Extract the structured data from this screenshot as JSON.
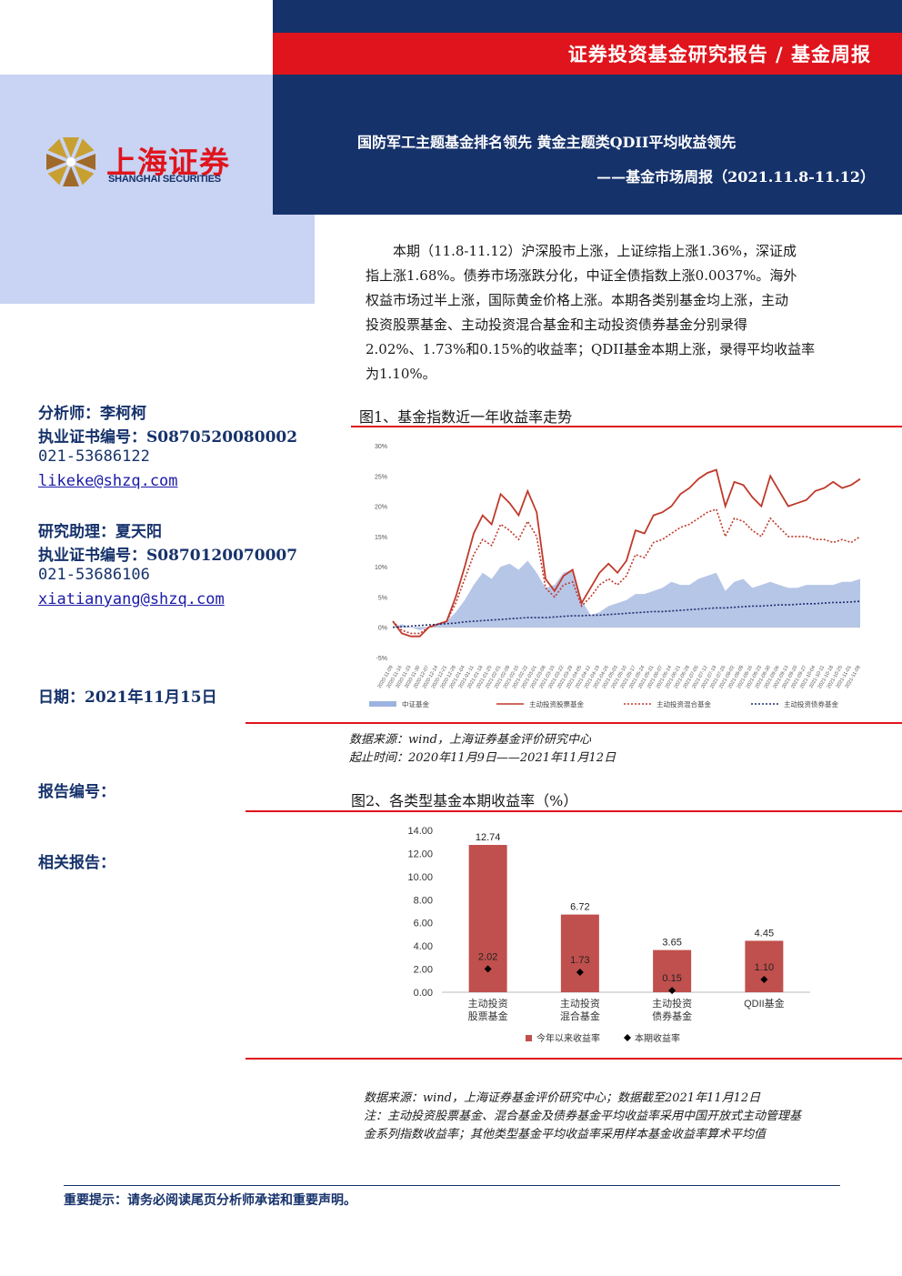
{
  "header": {
    "report_type": "证券投资基金研究报告 / 基金周报",
    "title": "国防军工主题基金排名领先 黄金主题类QDII平均收益领先",
    "subtitle": "——基金市场周报（2021.11.8-11.12）"
  },
  "brand": {
    "name_cn": "上海证券",
    "name_en": "SHANGHAI SECURITIES",
    "colors": {
      "navy": "#16326b",
      "red": "#e0141c",
      "lavender": "#c9d3f3"
    }
  },
  "summary": {
    "lines": [
      "本期（11.8-11.12）沪深股市上涨，上证综指上涨1.36%，深证成",
      "指上涨1.68%。债券市场涨跌分化，中证全债指数上涨0.0037%。海外",
      "权益市场过半上涨，国际黄金价格上涨。本期各类别基金均上涨，主动",
      "投资股票基金、主动投资混合基金和主动投资债券基金分别录得",
      "2.02%、1.73%和0.15%的收益率；QDII基金本期上涨，录得平均收益率",
      "为1.10%。"
    ]
  },
  "sidebar": {
    "analyst": "分析师：李柯柯",
    "analyst_cert": "执业证书编号：S0870520080002",
    "analyst_phone": "021-53686122",
    "analyst_email": "likeke@shzq.com",
    "assistant": "研究助理：夏天阳",
    "assistant_cert": "执业证书编号：S0870120070007",
    "assistant_phone": "021-53686106",
    "assistant_email": "xiatianyang@shzq.com",
    "date": "日期：2021年11月15日",
    "report_no": "报告编号：",
    "related": "相关报告："
  },
  "figure1": {
    "title": "图1、基金指数近一年收益率走势",
    "source": "数据来源：wind，上海证券基金评价研究中心",
    "period": "起止时间：2020年11月9日——2021年11月12日"
  },
  "figure2": {
    "title": "图2、各类型基金本期收益率（%）",
    "source": "数据来源：wind，上海证券基金评价研究中心；数据截至2021年11月12日",
    "note1": "注：主动投资股票基金、混合基金及债券基金平均收益率采用中国开放式主动管理基",
    "note2": "金系列指数收益率；其他类型基金平均收益率采用样本基金收益率算术平均值"
  },
  "footer": {
    "notice": "重要提示：请务必阅读尾页分析师承诺和重要声明。"
  },
  "chart_data": [
    {
      "type": "line",
      "title": "",
      "y_unit": "%",
      "ylim": [
        -5,
        30
      ],
      "yticks": [
        "-5%",
        "0%",
        "5%",
        "10%",
        "15%",
        "20%",
        "25%",
        "30%"
      ],
      "xticks": [
        "2020-11-09",
        "2020-11-16",
        "2020-11-23",
        "2020-11-30",
        "2020-12-07",
        "2020-12-14",
        "2020-12-21",
        "2020-12-28",
        "2021-01-04",
        "2021-01-11",
        "2021-01-18",
        "2021-01-25",
        "2021-02-01",
        "2021-02-08",
        "2021-02-15",
        "2021-02-22",
        "2021-03-01",
        "2021-03-08",
        "2021-03-15",
        "2021-03-22",
        "2021-03-29",
        "2021-04-05",
        "2021-04-12",
        "2021-04-19",
        "2021-04-26",
        "2021-05-03",
        "2021-05-10",
        "2021-05-17",
        "2021-05-24",
        "2021-05-31",
        "2021-06-07",
        "2021-06-14",
        "2021-06-21",
        "2021-06-28",
        "2021-07-05",
        "2021-07-12",
        "2021-07-19",
        "2021-07-26",
        "2021-08-02",
        "2021-08-09",
        "2021-08-16",
        "2021-08-23",
        "2021-08-30",
        "2021-09-06",
        "2021-09-13",
        "2021-09-20",
        "2021-09-27",
        "2021-10-04",
        "2021-10-11",
        "2021-10-18",
        "2021-10-25",
        "2021-11-01",
        "2021-11-08"
      ],
      "grid": false,
      "legend": "bottom",
      "series": [
        {
          "name": "中证基金",
          "style": "area",
          "color": "#9db3df",
          "values": [
            0,
            0.5,
            0,
            -0.5,
            0,
            0.5,
            1,
            2.5,
            4.5,
            7,
            9,
            8,
            10,
            10.5,
            9.5,
            11,
            9,
            6.5,
            7,
            9,
            9.5,
            4.5,
            2,
            2.5,
            3.5,
            4,
            4.5,
            5.5,
            5.5,
            6,
            6.5,
            7.5,
            7,
            7,
            8,
            8.5,
            9,
            6,
            7.5,
            8,
            6.5,
            7,
            7.5,
            7,
            6.5,
            6.5,
            7,
            7,
            7,
            7,
            7.5,
            7.5,
            8
          ]
        },
        {
          "name": "主动投资股票基金",
          "style": "solid",
          "color": "#c0392b",
          "values": [
            1,
            -1,
            -1.5,
            -1.5,
            0,
            0.5,
            1,
            5,
            10,
            15.5,
            18.5,
            17,
            22,
            20.5,
            18.5,
            22.5,
            19,
            8,
            6,
            8.5,
            9.5,
            4,
            6.5,
            9,
            10.5,
            9,
            11,
            16,
            15.5,
            18.5,
            19,
            20,
            22,
            23,
            24.5,
            25.5,
            26,
            20,
            24,
            23.5,
            21.5,
            20,
            25,
            22.5,
            20,
            20.5,
            21,
            22.5,
            23,
            24,
            23,
            23.5,
            24.5
          ]
        },
        {
          "name": "主动投资混合基金",
          "style": "dotted",
          "color": "#c0392b",
          "values": [
            1,
            -0.5,
            -1,
            -1,
            0,
            0.5,
            1,
            4,
            8,
            12,
            14.5,
            13.5,
            17,
            16,
            14.5,
            17.5,
            15,
            6.5,
            5,
            7,
            7.5,
            3.5,
            5,
            7,
            8,
            7,
            8.5,
            12,
            11.5,
            14,
            14.5,
            15.5,
            16.5,
            17,
            18,
            19,
            19.5,
            15,
            18,
            17.5,
            16,
            15,
            18,
            16.5,
            15,
            15,
            15,
            14.5,
            14.5,
            14,
            14.5,
            14,
            15
          ]
        },
        {
          "name": "主动投资债券基金",
          "style": "dotted",
          "color": "#1f2e6e",
          "values": [
            0,
            0.1,
            0.2,
            0.3,
            0.4,
            0.5,
            0.6,
            0.7,
            0.9,
            1,
            1.1,
            1.2,
            1.3,
            1.4,
            1.5,
            1.6,
            1.6,
            1.6,
            1.7,
            1.8,
            1.9,
            1.9,
            2,
            2,
            2.1,
            2.2,
            2.3,
            2.4,
            2.5,
            2.6,
            2.6,
            2.7,
            2.8,
            2.9,
            3,
            3.1,
            3.2,
            3.2,
            3.3,
            3.4,
            3.5,
            3.5,
            3.6,
            3.7,
            3.7,
            3.8,
            3.9,
            3.9,
            4,
            4.1,
            4.1,
            4.2,
            4.3
          ]
        }
      ]
    },
    {
      "type": "bar",
      "title": "",
      "categories": [
        "主动投资股票基金",
        "主动投资混合基金",
        "主动投资债券基金",
        "QDII基金"
      ],
      "category_labels": [
        [
          "主动投资",
          "股票基金"
        ],
        [
          "主动投资",
          "混合基金"
        ],
        [
          "主动投资",
          "债券基金"
        ],
        [
          "QDII基金"
        ]
      ],
      "ylim": [
        0,
        14
      ],
      "yticks": [
        "0.00",
        "2.00",
        "4.00",
        "6.00",
        "8.00",
        "10.00",
        "12.00",
        "14.00"
      ],
      "legend": "bottom",
      "series": [
        {
          "name": "今年以来收益率",
          "style": "bar",
          "color": "#c0504d",
          "values": [
            12.74,
            6.72,
            3.65,
            4.45
          ],
          "labels": [
            "12.74",
            "6.72",
            "3.65",
            "4.45"
          ]
        },
        {
          "name": "本期收益率",
          "style": "marker",
          "color": "#000000",
          "values": [
            2.02,
            1.73,
            0.15,
            1.1
          ],
          "labels": [
            "2.02",
            "1.73",
            "0.15",
            "1.10"
          ]
        }
      ]
    }
  ]
}
